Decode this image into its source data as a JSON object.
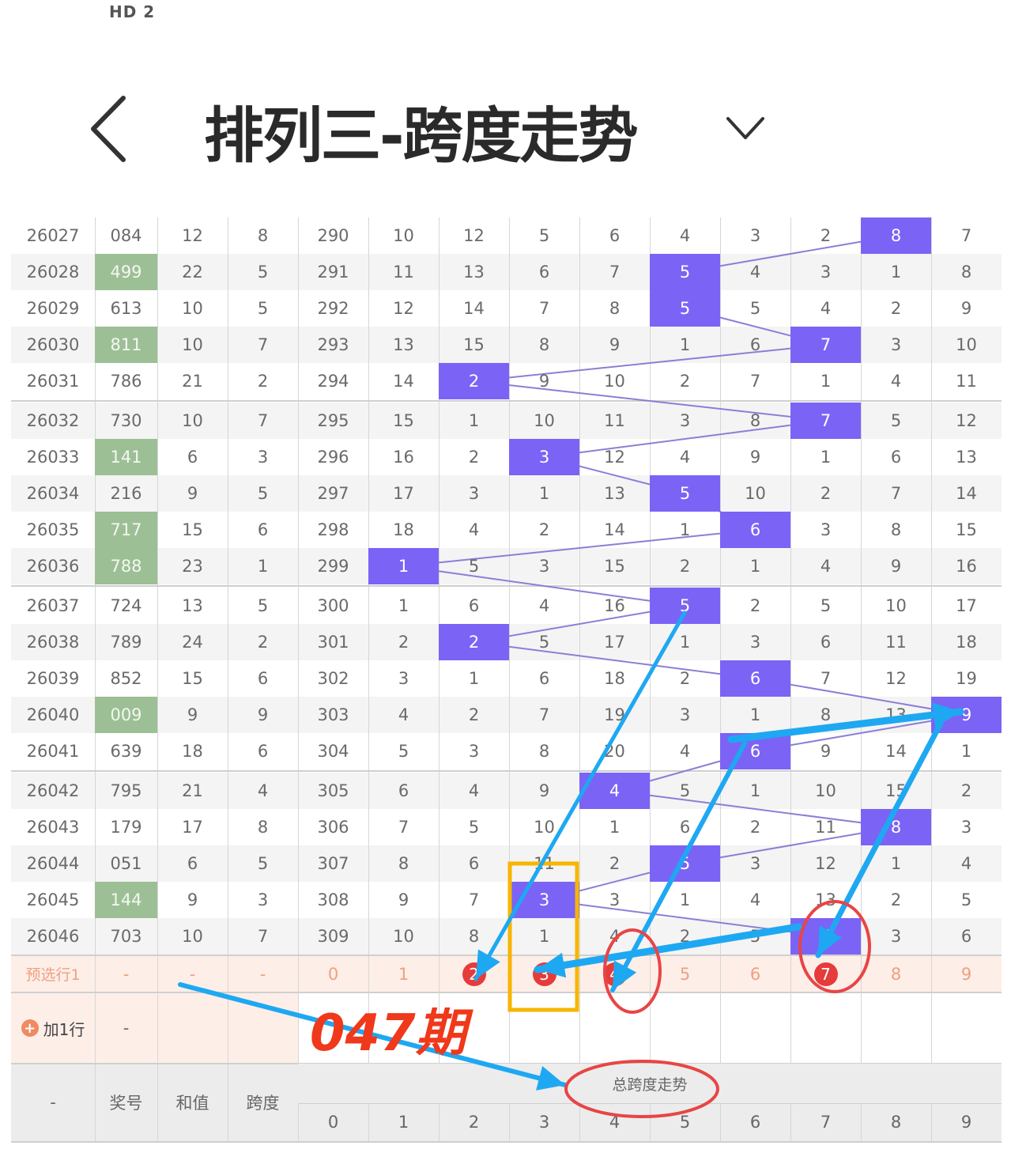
{
  "status_bar": {
    "text": "HD 2"
  },
  "header": {
    "title": "排列三-跨度走势",
    "back_icon": "chevron-left-icon",
    "dropdown_icon": "chevron-down-icon"
  },
  "colors": {
    "hit": "#7b63f6",
    "pair_number": "#9dbf95",
    "trend_line": "#8a7fd6",
    "preselect_bg": "#fdeee8",
    "preselect_selected": "#e63b3b",
    "annotation_arrow": "#1ea8f2",
    "annotation_circle": "#e84545",
    "annotation_box": "#f7b500",
    "annotation_text": "#f0381a"
  },
  "table": {
    "rows": [
      {
        "period": "26027",
        "number": "084",
        "sum": "12",
        "span": "8",
        "pair": false,
        "cells": [
          "290",
          "10",
          "12",
          "5",
          "6",
          "4",
          "3",
          "2",
          "8",
          "7"
        ]
      },
      {
        "period": "26028",
        "number": "499",
        "sum": "22",
        "span": "5",
        "pair": true,
        "cells": [
          "291",
          "11",
          "13",
          "6",
          "7",
          "5",
          "4",
          "3",
          "1",
          "8"
        ]
      },
      {
        "period": "26029",
        "number": "613",
        "sum": "10",
        "span": "5",
        "pair": false,
        "cells": [
          "292",
          "12",
          "14",
          "7",
          "8",
          "5",
          "5",
          "4",
          "2",
          "9"
        ]
      },
      {
        "period": "26030",
        "number": "811",
        "sum": "10",
        "span": "7",
        "pair": true,
        "cells": [
          "293",
          "13",
          "15",
          "8",
          "9",
          "1",
          "6",
          "7",
          "3",
          "10"
        ]
      },
      {
        "period": "26031",
        "number": "786",
        "sum": "21",
        "span": "2",
        "pair": false,
        "cells": [
          "294",
          "14",
          "2",
          "9",
          "10",
          "2",
          "7",
          "1",
          "4",
          "11"
        ]
      },
      {
        "period": "26032",
        "number": "730",
        "sum": "10",
        "span": "7",
        "pair": false,
        "cells": [
          "295",
          "15",
          "1",
          "10",
          "11",
          "3",
          "8",
          "7",
          "5",
          "12"
        ]
      },
      {
        "period": "26033",
        "number": "141",
        "sum": "6",
        "span": "3",
        "pair": true,
        "cells": [
          "296",
          "16",
          "2",
          "3",
          "12",
          "4",
          "9",
          "1",
          "6",
          "13"
        ]
      },
      {
        "period": "26034",
        "number": "216",
        "sum": "9",
        "span": "5",
        "pair": false,
        "cells": [
          "297",
          "17",
          "3",
          "1",
          "13",
          "5",
          "10",
          "2",
          "7",
          "14"
        ]
      },
      {
        "period": "26035",
        "number": "717",
        "sum": "15",
        "span": "6",
        "pair": true,
        "cells": [
          "298",
          "18",
          "4",
          "2",
          "14",
          "1",
          "6",
          "3",
          "8",
          "15"
        ]
      },
      {
        "period": "26036",
        "number": "788",
        "sum": "23",
        "span": "1",
        "pair": true,
        "cells": [
          "299",
          "1",
          "5",
          "3",
          "15",
          "2",
          "1",
          "4",
          "9",
          "16"
        ]
      },
      {
        "period": "26037",
        "number": "724",
        "sum": "13",
        "span": "5",
        "pair": false,
        "cells": [
          "300",
          "1",
          "6",
          "4",
          "16",
          "5",
          "2",
          "5",
          "10",
          "17"
        ]
      },
      {
        "period": "26038",
        "number": "789",
        "sum": "24",
        "span": "2",
        "pair": false,
        "cells": [
          "301",
          "2",
          "2",
          "5",
          "17",
          "1",
          "3",
          "6",
          "11",
          "18"
        ]
      },
      {
        "period": "26039",
        "number": "852",
        "sum": "15",
        "span": "6",
        "pair": false,
        "cells": [
          "302",
          "3",
          "1",
          "6",
          "18",
          "2",
          "6",
          "7",
          "12",
          "19"
        ]
      },
      {
        "period": "26040",
        "number": "009",
        "sum": "9",
        "span": "9",
        "pair": true,
        "cells": [
          "303",
          "4",
          "2",
          "7",
          "19",
          "3",
          "1",
          "8",
          "13",
          "9"
        ]
      },
      {
        "period": "26041",
        "number": "639",
        "sum": "18",
        "span": "6",
        "pair": false,
        "cells": [
          "304",
          "5",
          "3",
          "8",
          "20",
          "4",
          "6",
          "9",
          "14",
          "1"
        ]
      },
      {
        "period": "26042",
        "number": "795",
        "sum": "21",
        "span": "4",
        "pair": false,
        "cells": [
          "305",
          "6",
          "4",
          "9",
          "4",
          "5",
          "1",
          "10",
          "15",
          "2"
        ]
      },
      {
        "period": "26043",
        "number": "179",
        "sum": "17",
        "span": "8",
        "pair": false,
        "cells": [
          "306",
          "7",
          "5",
          "10",
          "1",
          "6",
          "2",
          "11",
          "8",
          "3"
        ]
      },
      {
        "period": "26044",
        "number": "051",
        "sum": "6",
        "span": "5",
        "pair": false,
        "cells": [
          "307",
          "8",
          "6",
          "11",
          "2",
          "5",
          "3",
          "12",
          "1",
          "4"
        ]
      },
      {
        "period": "26045",
        "number": "144",
        "sum": "9",
        "span": "3",
        "pair": true,
        "cells": [
          "308",
          "9",
          "7",
          "3",
          "3",
          "1",
          "4",
          "13",
          "2",
          "5"
        ]
      },
      {
        "period": "26046",
        "number": "703",
        "sum": "10",
        "span": "7",
        "pair": false,
        "cells": [
          "309",
          "10",
          "8",
          "1",
          "4",
          "2",
          "5",
          "7",
          "3",
          "6"
        ]
      }
    ],
    "preselect": {
      "label": "预选行1",
      "number": "-",
      "sum": "-",
      "span": "-",
      "digits": [
        "0",
        "1",
        "2",
        "3",
        "4",
        "5",
        "6",
        "7",
        "8",
        "9"
      ],
      "selected": [
        2,
        3,
        4,
        7
      ]
    },
    "add_row": {
      "label": "加1行",
      "icon": "plus-circle-icon",
      "number": "-"
    },
    "footer": {
      "period": "-",
      "number": "奖号",
      "sum": "和值",
      "span": "跨度",
      "group": "总跨度走势",
      "digits": [
        "0",
        "1",
        "2",
        "3",
        "4",
        "5",
        "6",
        "7",
        "8",
        "9"
      ]
    }
  },
  "annotation": {
    "text": "047期"
  }
}
